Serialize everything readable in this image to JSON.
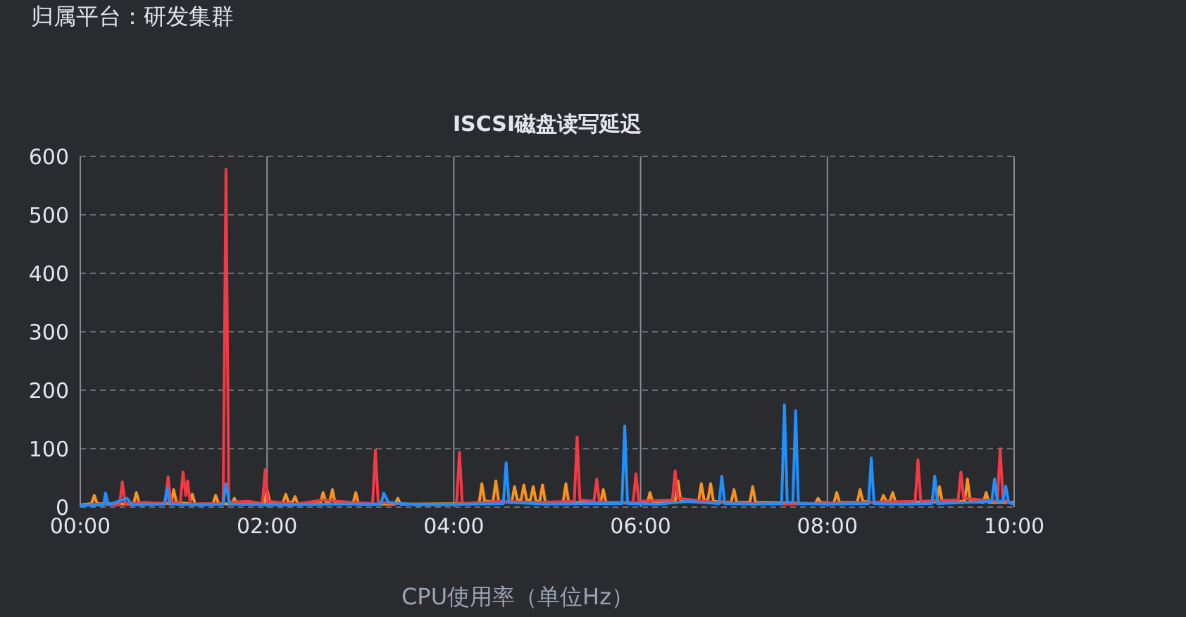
{
  "chart_data": {
    "type": "line",
    "title": "ISCSI磁盘读写延迟",
    "annotations": [
      "归属平台：研发集群",
      "CPU使用率（单位Hz）"
    ],
    "xlim": [
      0,
      10
    ],
    "xticks": [
      {
        "value": 0,
        "label": "00:00"
      },
      {
        "value": 2,
        "label": "02:00"
      },
      {
        "value": 4,
        "label": "04:00"
      },
      {
        "value": 6,
        "label": "06:00"
      },
      {
        "value": 8,
        "label": "08:00"
      },
      {
        "value": 10,
        "label": "10:00"
      }
    ],
    "ylim": [
      0,
      600
    ],
    "yticks": [
      0,
      100,
      200,
      300,
      400,
      500,
      600
    ],
    "grid": true,
    "marker": "none",
    "line_style": "solid",
    "series": [
      {
        "color": "#f7931e",
        "x": [
          0,
          0.12,
          0.15,
          0.18,
          0.57,
          0.6,
          0.63,
          0.97,
          1.0,
          1.03,
          1.17,
          1.2,
          1.23,
          1.42,
          1.45,
          1.48,
          1.62,
          1.65,
          1.68,
          1.97,
          2.0,
          2.03,
          2.17,
          2.2,
          2.23,
          2.27,
          2.3,
          2.33,
          2.57,
          2.6,
          2.63,
          2.67,
          2.7,
          2.73,
          2.92,
          2.95,
          2.98,
          3.37,
          3.4,
          3.43,
          4.27,
          4.3,
          4.33,
          4.42,
          4.45,
          4.48,
          4.62,
          4.65,
          4.68,
          4.72,
          4.75,
          4.78,
          4.82,
          4.85,
          4.88,
          4.92,
          4.95,
          4.98,
          5.17,
          5.2,
          5.23,
          5.57,
          5.6,
          5.63,
          6.07,
          6.1,
          6.13,
          6.37,
          6.4,
          6.43,
          6.62,
          6.65,
          6.68,
          6.72,
          6.75,
          6.78,
          6.97,
          7.0,
          7.03,
          7.17,
          7.2,
          7.23,
          7.87,
          7.9,
          7.93,
          8.07,
          8.1,
          8.13,
          8.32,
          8.35,
          8.38,
          8.57,
          8.6,
          8.63,
          8.67,
          8.7,
          8.73,
          9.17,
          9.2,
          9.23,
          9.47,
          9.5,
          9.53,
          9.67,
          9.7,
          9.73,
          10
        ],
        "values": [
          4,
          6,
          20,
          6,
          5,
          25,
          7,
          6,
          30,
          8,
          6,
          22,
          5,
          5,
          20,
          6,
          5,
          15,
          5,
          6,
          30,
          8,
          7,
          22,
          8,
          8,
          18,
          5,
          6,
          25,
          9,
          9,
          30,
          6,
          6,
          25,
          5,
          5,
          15,
          5,
          6,
          40,
          10,
          10,
          45,
          10,
          8,
          35,
          12,
          12,
          38,
          12,
          12,
          35,
          10,
          10,
          38,
          8,
          8,
          40,
          8,
          7,
          30,
          8,
          6,
          25,
          8,
          9,
          45,
          10,
          9,
          40,
          12,
          12,
          40,
          10,
          8,
          30,
          8,
          8,
          35,
          8,
          6,
          15,
          8,
          7,
          25,
          8,
          8,
          30,
          10,
          7,
          20,
          10,
          10,
          25,
          8,
          9,
          35,
          10,
          10,
          48,
          10,
          8,
          25,
          8,
          8
        ]
      },
      {
        "color": "#f23a45",
        "x": [
          0,
          0.2,
          0.42,
          0.45,
          0.48,
          0.7,
          0.91,
          0.94,
          0.97,
          1.07,
          1.1,
          1.13,
          1.15,
          1.18,
          1.4,
          1.53,
          1.56,
          1.59,
          1.8,
          1.95,
          1.98,
          2.01,
          2.3,
          2.6,
          2.9,
          3.13,
          3.16,
          3.19,
          3.5,
          3.8,
          4.03,
          4.06,
          4.09,
          4.5,
          4.9,
          5.29,
          5.32,
          5.35,
          5.5,
          5.53,
          5.56,
          5.92,
          5.95,
          5.98,
          6.34,
          6.37,
          6.4,
          6.8,
          7.2,
          7.6,
          8.0,
          8.4,
          8.94,
          8.97,
          9.0,
          9.4,
          9.43,
          9.46,
          9.82,
          9.85,
          9.88,
          10
        ],
        "values": [
          3,
          5,
          4,
          43,
          6,
          8,
          5,
          52,
          10,
          6,
          60,
          20,
          45,
          5,
          6,
          5,
          578,
          8,
          10,
          6,
          64,
          10,
          5,
          12,
          8,
          6,
          98,
          8,
          5,
          4,
          5,
          94,
          6,
          10,
          8,
          10,
          120,
          12,
          10,
          48,
          8,
          8,
          57,
          10,
          12,
          62,
          15,
          8,
          6,
          5,
          7,
          8,
          10,
          81,
          10,
          12,
          60,
          15,
          10,
          100,
          12,
          5
        ]
      },
      {
        "color": "#1e90ff",
        "x": [
          0,
          0.25,
          0.27,
          0.3,
          0.5,
          0.55,
          0.9,
          0.93,
          0.96,
          1.3,
          1.53,
          1.56,
          1.6,
          2.2,
          2.7,
          3.22,
          3.25,
          3.3,
          3.6,
          4.2,
          4.53,
          4.56,
          4.59,
          5.0,
          5.5,
          5.8,
          5.83,
          5.86,
          6.2,
          6.5,
          6.84,
          6.87,
          6.9,
          7.2,
          7.51,
          7.54,
          7.57,
          7.63,
          7.66,
          7.69,
          8.0,
          8.44,
          8.47,
          8.5,
          8.8,
          9.12,
          9.15,
          9.18,
          9.5,
          9.76,
          9.79,
          9.82,
          9.88,
          9.91,
          9.94,
          10
        ],
        "values": [
          3,
          4,
          24,
          4,
          15,
          4,
          5,
          33,
          5,
          4,
          5,
          40,
          5,
          4,
          5,
          5,
          24,
          8,
          4,
          5,
          6,
          76,
          8,
          5,
          6,
          6,
          139,
          6,
          5,
          10,
          6,
          53,
          6,
          5,
          6,
          175,
          8,
          8,
          165,
          6,
          5,
          6,
          84,
          6,
          5,
          6,
          53,
          6,
          8,
          10,
          48,
          10,
          10,
          36,
          8,
          5
        ]
      }
    ]
  }
}
